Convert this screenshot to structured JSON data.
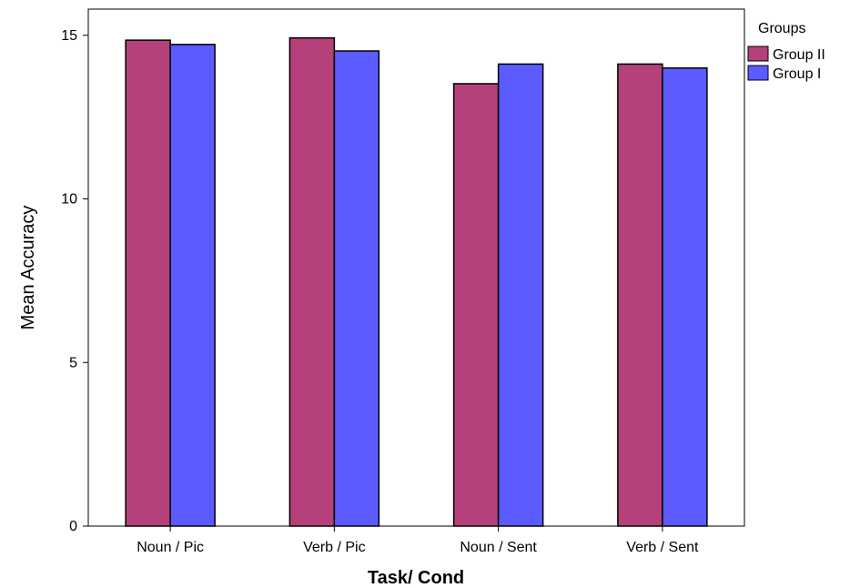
{
  "chart_data": {
    "type": "bar",
    "title": "",
    "xlabel": "Task/ Cond",
    "ylabel": "Mean Accuracy",
    "categories": [
      "Noun / Pic",
      "Verb / Pic",
      "Noun / Sent",
      "Verb / Sent"
    ],
    "series": [
      {
        "name": "Group II",
        "color": "#b5407a",
        "values": [
          14.85,
          14.92,
          13.52,
          14.12
        ]
      },
      {
        "name": "Group I",
        "color": "#5b5bff",
        "values": [
          14.72,
          14.52,
          14.12,
          14.0
        ]
      }
    ],
    "ylim": [
      0,
      15.8
    ],
    "yticks": [
      "0",
      "5",
      "10",
      "15"
    ],
    "grid": false,
    "legend": {
      "title": "Groups",
      "position": "right"
    }
  }
}
